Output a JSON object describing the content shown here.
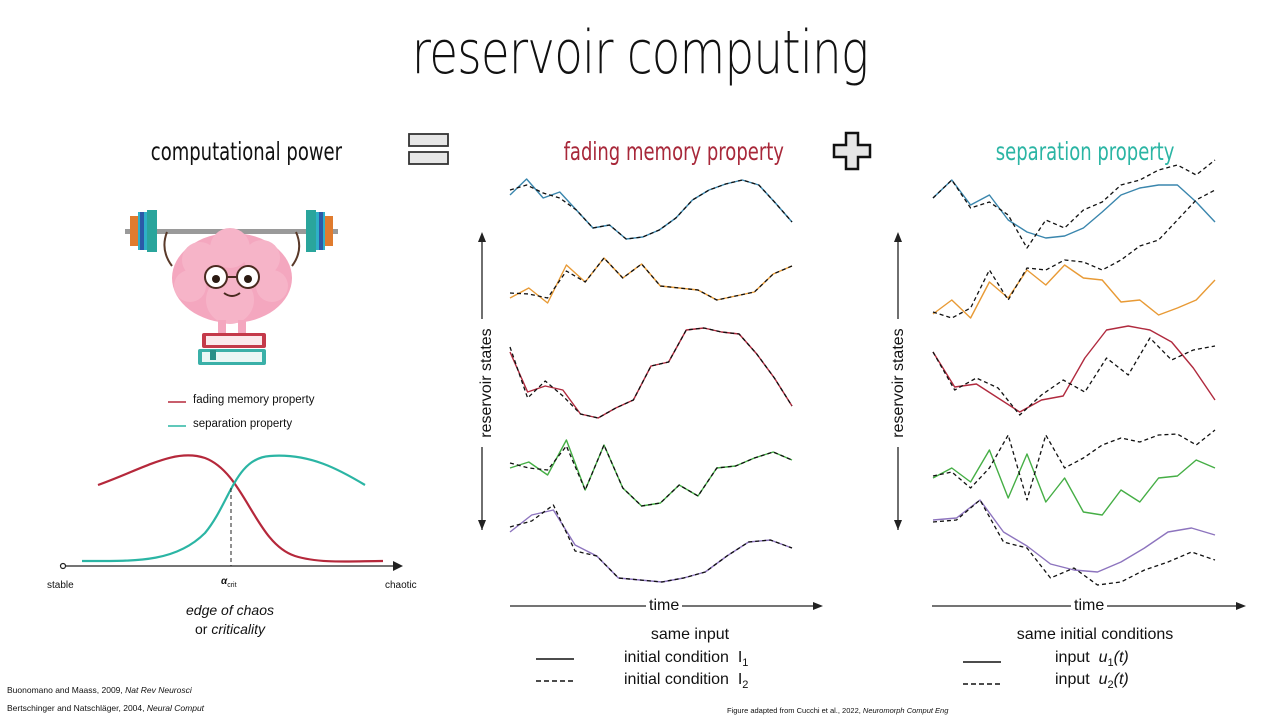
{
  "title": "reservoir computing",
  "left_panel": {
    "heading": "computational power",
    "legend": [
      {
        "label": "fading memory property",
        "color": "#b5283b"
      },
      {
        "label": "separation property",
        "color": "#2bb5a4"
      }
    ],
    "axis": {
      "left": "stable",
      "right": "chaotic",
      "mid_symbol": "α",
      "mid_subscript": "crit"
    },
    "caption_line1": "edge of chaos",
    "caption_line2_prefix": "or ",
    "caption_line2_em": "criticality"
  },
  "operators": {
    "equals": "equals-icon",
    "plus": "plus-icon"
  },
  "middle_panel": {
    "heading": "fading memory property",
    "heading_color": "#a8283a",
    "y_label": "reservoir states",
    "x_label": "time",
    "subtitle": "same input",
    "legend": [
      {
        "text": "initial condition",
        "sym": "I",
        "sub": "1",
        "style": "solid"
      },
      {
        "text": "initial condition",
        "sym": "I",
        "sub": "2",
        "style": "dashed"
      }
    ]
  },
  "right_panel": {
    "heading": "separation property",
    "heading_color": "#2bb5a4",
    "y_label": "reservoir states",
    "x_label": "time",
    "subtitle": "same initial conditions",
    "legend": [
      {
        "text": "input",
        "sym": "u",
        "sub": "1",
        "arg": "(t)",
        "style": "solid"
      },
      {
        "text": "input",
        "sym": "u",
        "sub": "2",
        "arg": "(t)",
        "style": "dashed"
      }
    ]
  },
  "series_colors": [
    "#3a86ad",
    "#e89a35",
    "#b02a3e",
    "#45ae45",
    "#8d74be"
  ],
  "references": [
    {
      "authors": "Buonomano and Maass, 2009, ",
      "journal": "Nat Rev Neurosci"
    },
    {
      "authors": "Bertschinger and Natschläger, 2004, ",
      "journal": "Neural Comput"
    }
  ],
  "figure_credit": {
    "text": "Figure adapted from Cucchi et al.,  2022, ",
    "journal": "Neuromorph Comput Eng"
  }
}
